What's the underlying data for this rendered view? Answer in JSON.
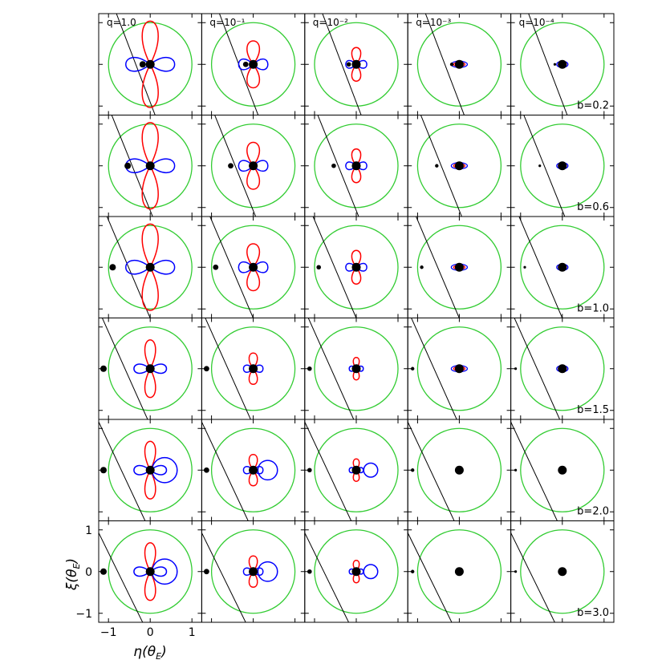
{
  "figure": {
    "columns": [
      {
        "label": "q=1.0",
        "q": 1.0
      },
      {
        "label": "q=10⁻¹",
        "q": 0.1
      },
      {
        "label": "q=10⁻²",
        "q": 0.01
      },
      {
        "label": "q=10⁻³",
        "q": 0.001
      },
      {
        "label": "q=10⁻⁴",
        "q": 0.0001
      }
    ],
    "rows": [
      {
        "label": "b=0.2",
        "b": 0.2
      },
      {
        "label": "b=0.6",
        "b": 0.6
      },
      {
        "label": "b=1.0",
        "b": 1.0
      },
      {
        "label": "b=1.5",
        "b": 1.5
      },
      {
        "label": "b=2.0",
        "b": 2.0
      },
      {
        "label": "b=3.0",
        "b": 3.0
      }
    ],
    "x_axis": {
      "label": "η(θ",
      "sub": "E",
      "close": ")",
      "ticks": [
        "−1",
        "0",
        "1"
      ],
      "tick_values": [
        -1,
        0,
        1
      ],
      "range": [
        -1.2,
        1.2
      ]
    },
    "y_axis": {
      "label": "ξ(θ",
      "sub": "E",
      "close": ")",
      "ticks": [
        "1",
        "0",
        "−1"
      ],
      "tick_values": [
        1,
        0,
        -1
      ],
      "range": [
        -1.2,
        1.2
      ]
    },
    "einstein_ring": {
      "radius": 1.0,
      "color": "#33cc33"
    },
    "trajectory_color": "#000000",
    "contour_colors": {
      "positive": "#ff0000",
      "negative": "#0000ff"
    }
  }
}
